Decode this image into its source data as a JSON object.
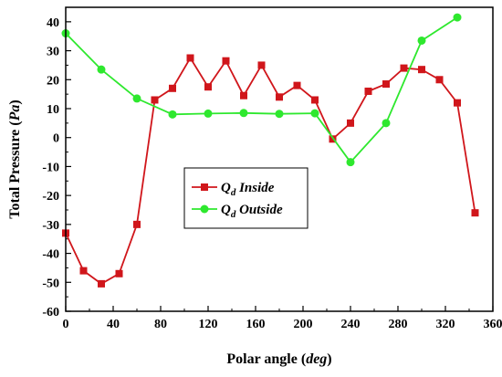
{
  "chart_data": {
    "type": "line",
    "title": "",
    "xlabel": {
      "prefix": "Polar angle (",
      "unit": "deg",
      "suffix": ")"
    },
    "ylabel": {
      "prefix": "Total Pressure (",
      "unit": "Pa",
      "suffix": ")"
    },
    "xlim": [
      0,
      360
    ],
    "ylim": [
      -60,
      45
    ],
    "xticks": [
      0,
      40,
      80,
      120,
      160,
      200,
      240,
      280,
      320,
      360
    ],
    "yticks": [
      -60,
      -50,
      -40,
      -30,
      -20,
      -10,
      0,
      10,
      20,
      30,
      40
    ],
    "grid": false,
    "legend_position": "center-left",
    "series": [
      {
        "name": "Qd Inside",
        "legend_main": "Q",
        "legend_sub": "d",
        "legend_rest": " Inside",
        "color": "#d0161b",
        "marker": "square",
        "x": [
          0,
          15,
          30,
          45,
          60,
          75,
          90,
          105,
          120,
          135,
          150,
          165,
          180,
          195,
          210,
          225,
          240,
          255,
          270,
          285,
          300,
          315,
          330,
          345
        ],
        "y": [
          -33,
          -46,
          -50.5,
          -47,
          -30,
          13,
          17,
          27.5,
          17.5,
          26.5,
          14.5,
          25,
          14,
          18,
          13,
          -0.5,
          5,
          16,
          18.5,
          24,
          23.5,
          20,
          12,
          -26
        ]
      },
      {
        "name": "Qd Outside",
        "legend_main": "Q",
        "legend_sub": "d",
        "legend_rest": " Outside",
        "color": "#2ee82e",
        "marker": "circle",
        "x": [
          0,
          30,
          60,
          90,
          120,
          150,
          180,
          210,
          240,
          270,
          300,
          330
        ],
        "y": [
          36,
          23.5,
          13.5,
          8,
          8.3,
          8.5,
          8.2,
          8.4,
          -8.5,
          5,
          33.5,
          41.5
        ]
      }
    ]
  }
}
